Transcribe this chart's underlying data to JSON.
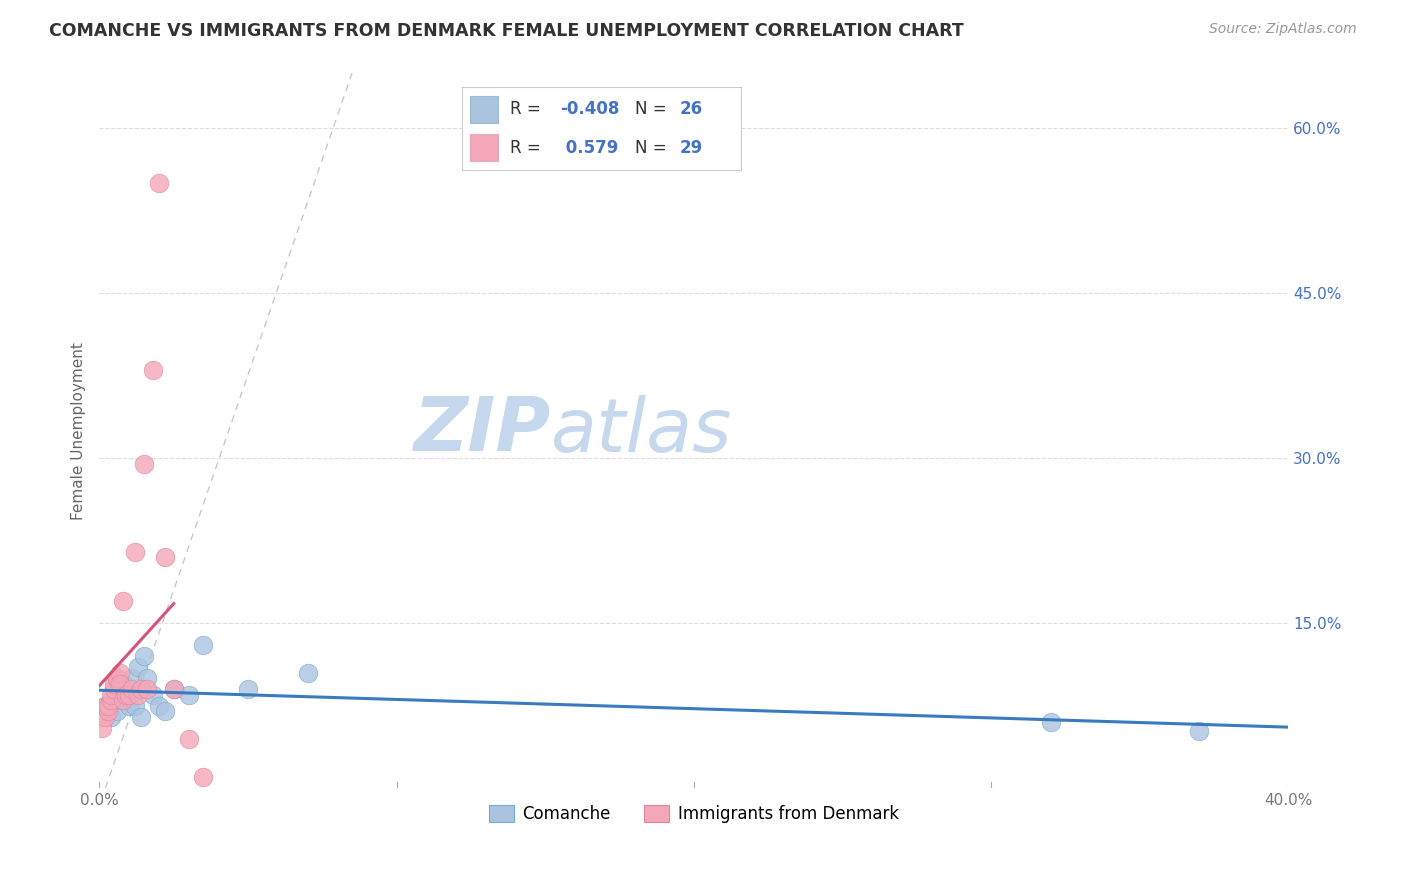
{
  "title": "COMANCHE VS IMMIGRANTS FROM DENMARK FEMALE UNEMPLOYMENT CORRELATION CHART",
  "source": "Source: ZipAtlas.com",
  "ylabel": "Female Unemployment",
  "xlim": [
    0.0,
    0.4
  ],
  "ylim": [
    0.0,
    0.65
  ],
  "yticks": [
    0.0,
    0.15,
    0.3,
    0.45,
    0.6
  ],
  "xticks": [
    0.0,
    0.1,
    0.2,
    0.3,
    0.4
  ],
  "xtick_labels": [
    "0.0%",
    "",
    "",
    "",
    "40.0%"
  ],
  "ytick_labels_right": [
    "",
    "15.0%",
    "30.0%",
    "45.0%",
    "60.0%"
  ],
  "background_color": "#ffffff",
  "grid_color": "#dddddd",
  "comanche_color": "#aac4e0",
  "denmark_color": "#f4a7b9",
  "comanche_line_color": "#3a7abf",
  "denmark_line_color": "#d4547a",
  "diagonal_color": "#cccccc",
  "watermark_zip": "ZIP",
  "watermark_atlas": "atlas",
  "watermark_color_zip": "#c5d8ee",
  "watermark_color_atlas": "#c5d8ee",
  "legend_label_color": "#4472c4",
  "comanche_R": "-0.408",
  "comanche_N": "26",
  "denmark_R": "0.579",
  "denmark_N": "29",
  "comanche_x": [
    0.002,
    0.004,
    0.005,
    0.006,
    0.006,
    0.007,
    0.008,
    0.008,
    0.009,
    0.01,
    0.011,
    0.012,
    0.013,
    0.014,
    0.015,
    0.016,
    0.018,
    0.02,
    0.022,
    0.025,
    0.03,
    0.035,
    0.05,
    0.07,
    0.32,
    0.37
  ],
  "comanche_y": [
    0.075,
    0.065,
    0.08,
    0.07,
    0.095,
    0.08,
    0.095,
    0.085,
    0.09,
    0.075,
    0.1,
    0.075,
    0.11,
    0.065,
    0.12,
    0.1,
    0.085,
    0.075,
    0.07,
    0.09,
    0.085,
    0.13,
    0.09,
    0.105,
    0.06,
    0.052
  ],
  "denmark_x": [
    0.001,
    0.002,
    0.002,
    0.003,
    0.003,
    0.004,
    0.004,
    0.005,
    0.005,
    0.006,
    0.006,
    0.007,
    0.007,
    0.008,
    0.008,
    0.009,
    0.01,
    0.011,
    0.012,
    0.013,
    0.014,
    0.015,
    0.016,
    0.018,
    0.02,
    0.022,
    0.025,
    0.03,
    0.035
  ],
  "denmark_y": [
    0.055,
    0.065,
    0.075,
    0.07,
    0.075,
    0.08,
    0.085,
    0.09,
    0.095,
    0.1,
    0.1,
    0.105,
    0.095,
    0.17,
    0.08,
    0.085,
    0.085,
    0.09,
    0.215,
    0.085,
    0.09,
    0.295,
    0.09,
    0.38,
    0.55,
    0.21,
    0.09,
    0.045,
    0.01
  ],
  "tick_line_color": "#aaaaaa"
}
